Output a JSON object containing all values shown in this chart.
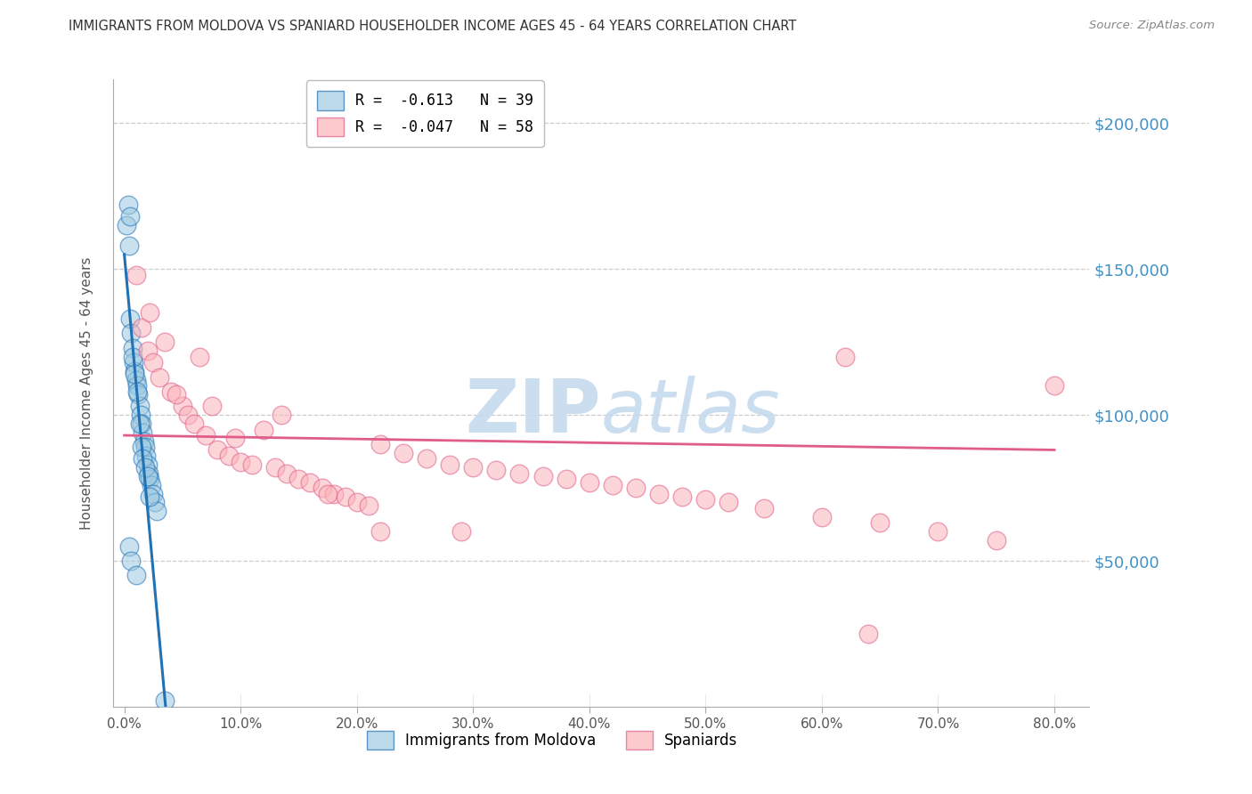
{
  "title": "IMMIGRANTS FROM MOLDOVA VS SPANIARD HOUSEHOLDER INCOME AGES 45 - 64 YEARS CORRELATION CHART",
  "source": "Source: ZipAtlas.com",
  "ylabel": "Householder Income Ages 45 - 64 years",
  "xtick_labels": [
    "0.0%",
    "10.0%",
    "20.0%",
    "30.0%",
    "40.0%",
    "50.0%",
    "60.0%",
    "70.0%",
    "80.0%"
  ],
  "xtick_vals": [
    0,
    10,
    20,
    30,
    40,
    50,
    60,
    70,
    80
  ],
  "ytick_labels": [
    "$50,000",
    "$100,000",
    "$150,000",
    "$200,000"
  ],
  "ytick_vals": [
    50000,
    100000,
    150000,
    200000
  ],
  "ylim_top": 215000,
  "xlim": [
    -1,
    83
  ],
  "legend_r1": "R =  -0.613   N = 39",
  "legend_r2": "R =  -0.047   N = 58",
  "legend_label1": "Immigrants from Moldova",
  "legend_label2": "Spaniards",
  "blue_face": "#9ecae1",
  "blue_edge": "#2171b5",
  "pink_face": "#fbb4b9",
  "pink_edge": "#e05c8a",
  "blue_line": "#2171b5",
  "pink_line": "#e05c8a",
  "title_color": "#333333",
  "source_color": "#888888",
  "yright_color": "#4292c6",
  "watermark_color": "#c6dbef",
  "grid_color": "#cccccc",
  "blue_x": [
    0.2,
    0.4,
    0.5,
    0.6,
    0.7,
    0.8,
    0.9,
    1.0,
    1.1,
    1.2,
    1.3,
    1.4,
    1.5,
    1.6,
    1.7,
    1.8,
    1.9,
    2.0,
    2.1,
    2.2,
    2.3,
    2.5,
    2.6,
    2.8,
    0.3,
    0.5,
    0.7,
    0.9,
    1.1,
    1.3,
    1.5,
    1.6,
    1.8,
    2.0,
    2.2,
    0.4,
    0.6,
    1.0,
    3.5
  ],
  "blue_y": [
    165000,
    158000,
    133000,
    128000,
    123000,
    118000,
    115000,
    112000,
    110000,
    107000,
    103000,
    100000,
    97000,
    94000,
    91000,
    89000,
    86000,
    83000,
    80000,
    78000,
    76000,
    73000,
    70000,
    67000,
    172000,
    168000,
    120000,
    114000,
    108000,
    97000,
    89000,
    85000,
    82000,
    79000,
    72000,
    55000,
    50000,
    45000,
    2000
  ],
  "pink_x": [
    1.0,
    1.5,
    2.0,
    2.5,
    3.0,
    3.5,
    4.0,
    5.0,
    5.5,
    6.0,
    7.0,
    7.5,
    8.0,
    9.0,
    10.0,
    11.0,
    12.0,
    13.0,
    14.0,
    15.0,
    16.0,
    17.0,
    18.0,
    19.0,
    20.0,
    21.0,
    22.0,
    24.0,
    26.0,
    28.0,
    30.0,
    32.0,
    34.0,
    36.0,
    38.0,
    40.0,
    42.0,
    44.0,
    46.0,
    48.0,
    50.0,
    52.0,
    55.0,
    60.0,
    65.0,
    70.0,
    75.0,
    80.0,
    2.2,
    4.5,
    6.5,
    9.5,
    13.5,
    17.5,
    22.0,
    29.0,
    62.0,
    64.0
  ],
  "pink_y": [
    148000,
    130000,
    122000,
    118000,
    113000,
    125000,
    108000,
    103000,
    100000,
    97000,
    93000,
    103000,
    88000,
    86000,
    84000,
    83000,
    95000,
    82000,
    80000,
    78000,
    77000,
    75000,
    73000,
    72000,
    70000,
    69000,
    90000,
    87000,
    85000,
    83000,
    82000,
    81000,
    80000,
    79000,
    78000,
    77000,
    76000,
    75000,
    73000,
    72000,
    71000,
    70000,
    68000,
    65000,
    63000,
    60000,
    57000,
    110000,
    135000,
    107000,
    120000,
    92000,
    100000,
    73000,
    60000,
    60000,
    120000,
    25000
  ]
}
